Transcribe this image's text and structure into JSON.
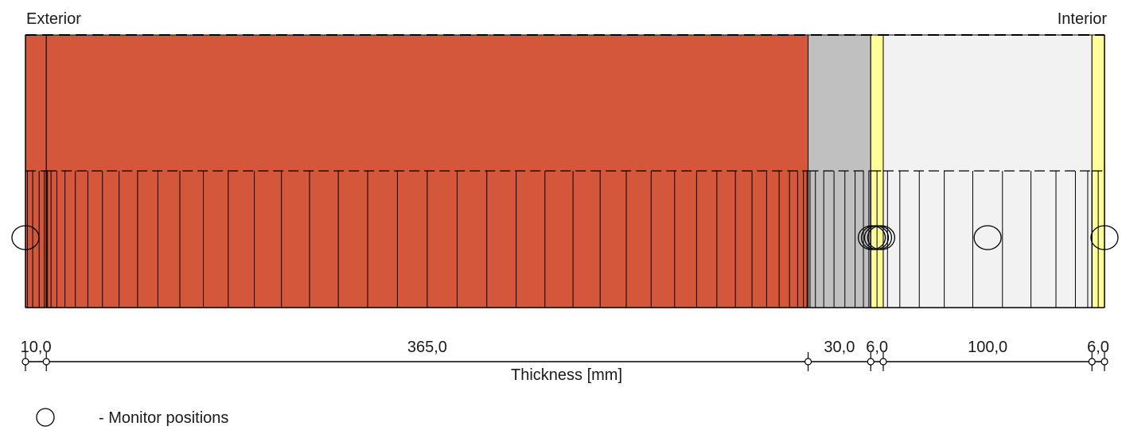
{
  "labels": {
    "exterior": "Exterior",
    "interior": "Interior",
    "axis_title": "Thickness [mm]",
    "legend_text": "- Monitor positions"
  },
  "layers": [
    {
      "thickness": 10.0,
      "thickness_label": "10,0",
      "color": "#d5573b",
      "grid_cells": 5
    },
    {
      "thickness": 365.0,
      "thickness_label": "365,0",
      "color": "#d5573b",
      "grid_cells": 40
    },
    {
      "thickness": 30.0,
      "thickness_label": "30,0",
      "color": "#c0c0c0",
      "grid_cells": 9
    },
    {
      "thickness": 6.0,
      "thickness_label": "6,0",
      "color": "#ffff99",
      "grid_cells": 2
    },
    {
      "thickness": 100.0,
      "thickness_label": "100,0",
      "color": "#f2f2f2",
      "grid_cells": 11
    },
    {
      "thickness": 6.0,
      "thickness_label": "6,0",
      "color": "#ffff99",
      "grid_cells": 2
    }
  ],
  "monitor_positions": [
    0.0,
    405.5,
    407.0,
    408.5,
    410.0,
    461.0,
    517.0
  ]
}
